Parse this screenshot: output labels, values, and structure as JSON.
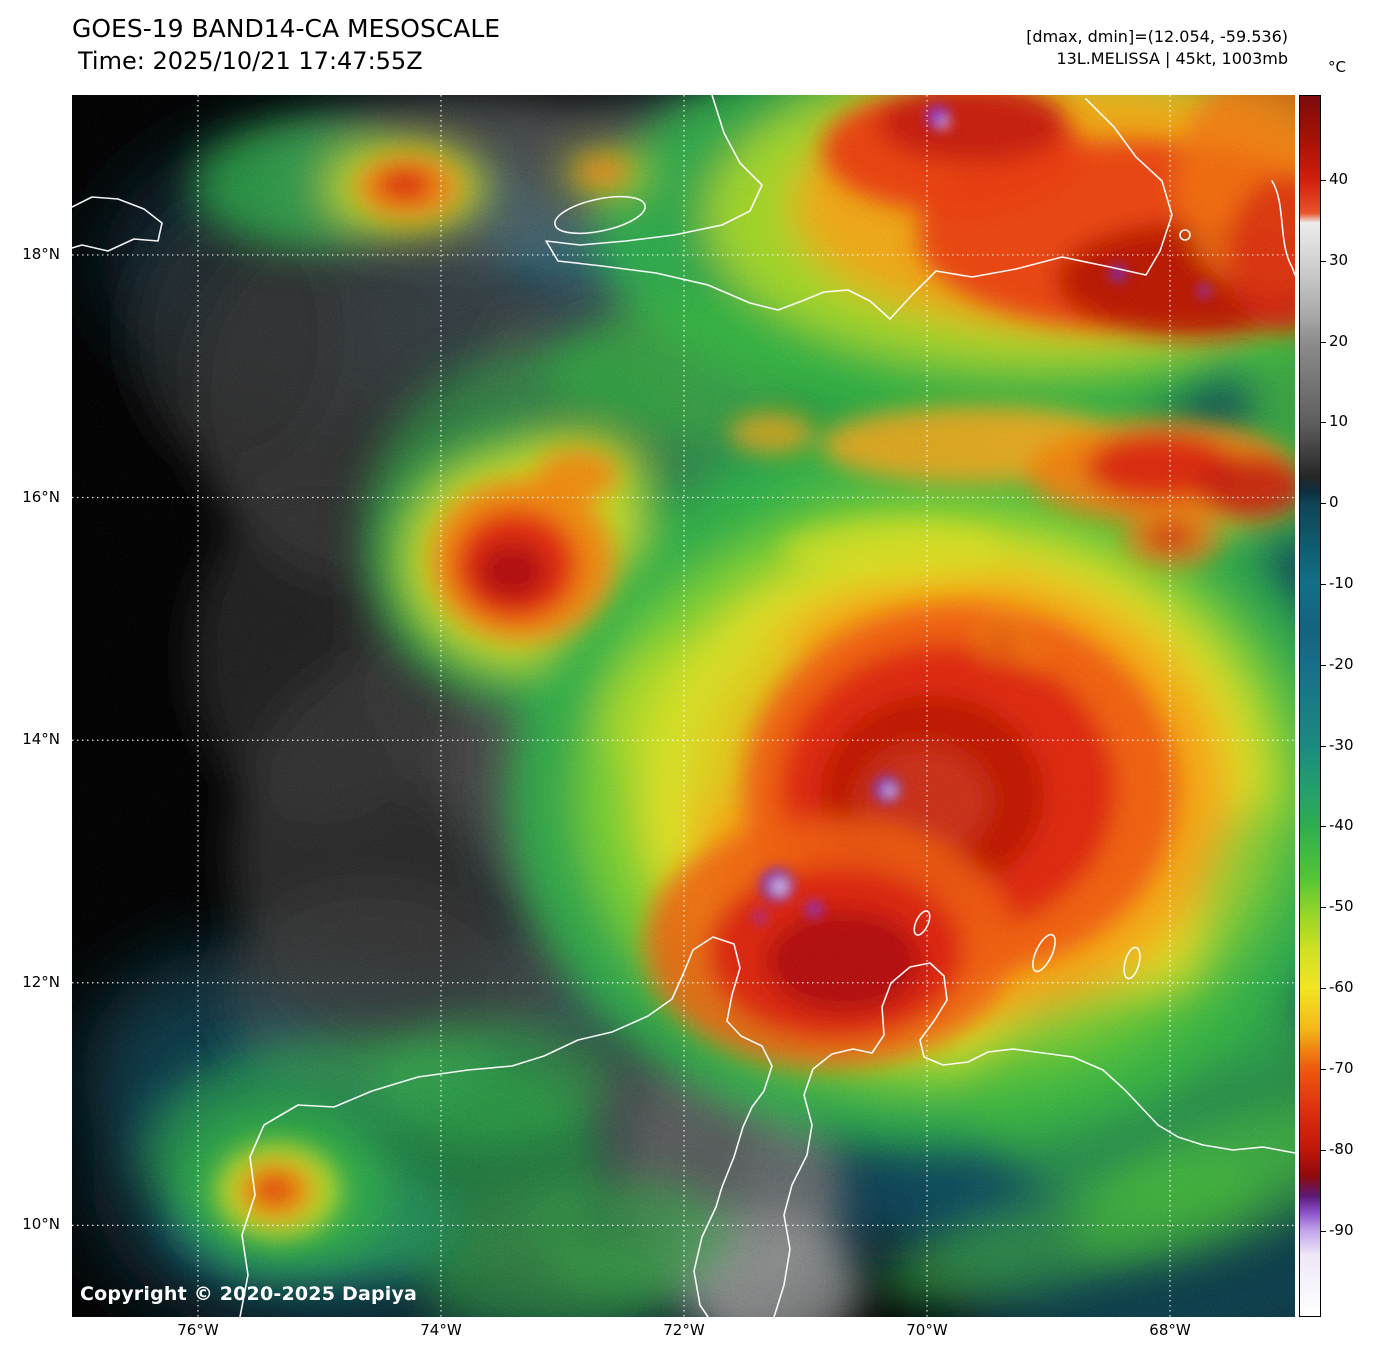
{
  "header": {
    "title": "GOES-19 BAND14-CA MESOSCALE",
    "time_line": "Time: 2025/10/21 17:47:55Z",
    "dmax_dmin": "[dmax, dmin]=(12.054, -59.536)",
    "storm_info": "13L.MELISSA | 45kt, 1003mb"
  },
  "colorbar": {
    "unit": "°C",
    "vmax": 50.5,
    "vmin": -100.7,
    "ticks": [
      40,
      30,
      20,
      10,
      0,
      -10,
      -20,
      -30,
      -40,
      -50,
      -60,
      -70,
      -80,
      -90
    ]
  },
  "axes": {
    "lat": {
      "labels": [
        "18°N",
        "16°N",
        "14°N",
        "12°N",
        "10°N"
      ],
      "fracs": [
        0.1309,
        0.3294,
        0.528,
        0.7265,
        0.925
      ]
    },
    "lon": {
      "labels": [
        "76°W",
        "74°W",
        "72°W",
        "70°W",
        "68°W"
      ],
      "fracs": [
        0.103,
        0.3017,
        0.5004,
        0.6991,
        0.8978
      ]
    }
  },
  "footer": {
    "copyright": "Copyright © 2020-2025 Dapiya"
  },
  "map": {
    "storm_name": "13L.MELISSA",
    "colors": {
      "coldest_cloud_purple": "#7a2ab8",
      "deep_convection_red": "#dc2408",
      "anvil_orange": "#f5a015",
      "cold_green": "#2fae45",
      "mid_cloud_teal": "#0c4458",
      "low_cloud_gray": "#4a4a4a",
      "coastline": "#ffffff"
    }
  }
}
